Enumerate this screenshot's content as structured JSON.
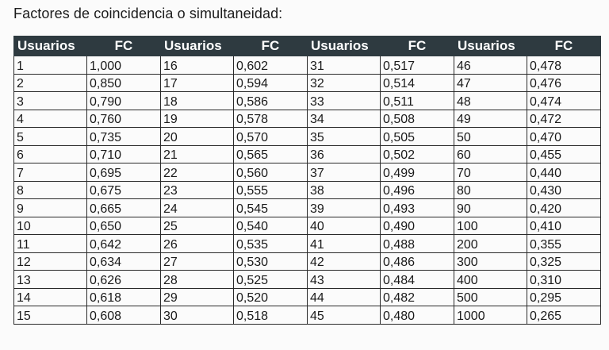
{
  "title": "Factores de coincidencia o simultaneidad:",
  "table": {
    "headers": [
      "Usuarios",
      "FC",
      "Usuarios",
      "FC",
      "Usuarios",
      "FC",
      "Usuarios",
      "FC"
    ],
    "rows": [
      [
        "1",
        "1,000",
        "16",
        "0,602",
        "31",
        "0,517",
        "46",
        "0,478"
      ],
      [
        "2",
        "0,850",
        "17",
        "0,594",
        "32",
        "0,514",
        "47",
        "0,476"
      ],
      [
        "3",
        "0,790",
        "18",
        "0,586",
        "33",
        "0,511",
        "48",
        "0,474"
      ],
      [
        "4",
        "0,760",
        "19",
        "0,578",
        "34",
        "0,508",
        "49",
        "0,472"
      ],
      [
        "5",
        "0,735",
        "20",
        "0,570",
        "35",
        "0,505",
        "50",
        "0,470"
      ],
      [
        "6",
        "0,710",
        "21",
        "0,565",
        "36",
        "0,502",
        "60",
        "0,455"
      ],
      [
        "7",
        "0,695",
        "22",
        "0,560",
        "37",
        "0,499",
        "70",
        "0,440"
      ],
      [
        "8",
        "0,675",
        "23",
        "0,555",
        "38",
        "0,496",
        "80",
        "0,430"
      ],
      [
        "9",
        "0,665",
        "24",
        "0,545",
        "39",
        "0,493",
        "90",
        "0,420"
      ],
      [
        "10",
        "0,650",
        "25",
        "0,540",
        "40",
        "0,490",
        "100",
        "0,410"
      ],
      [
        "11",
        "0,642",
        "26",
        "0,535",
        "41",
        "0,488",
        "200",
        "0,355"
      ],
      [
        "12",
        "0,634",
        "27",
        "0,530",
        "42",
        "0,486",
        "300",
        "0,325"
      ],
      [
        "13",
        "0,626",
        "28",
        "0,525",
        "43",
        "0,484",
        "400",
        "0,310"
      ],
      [
        "14",
        "0,618",
        "29",
        "0,520",
        "44",
        "0,482",
        "500",
        "0,295"
      ],
      [
        "15",
        "0,608",
        "30",
        "0,518",
        "45",
        "0,480",
        "1000",
        "0,265"
      ]
    ]
  }
}
